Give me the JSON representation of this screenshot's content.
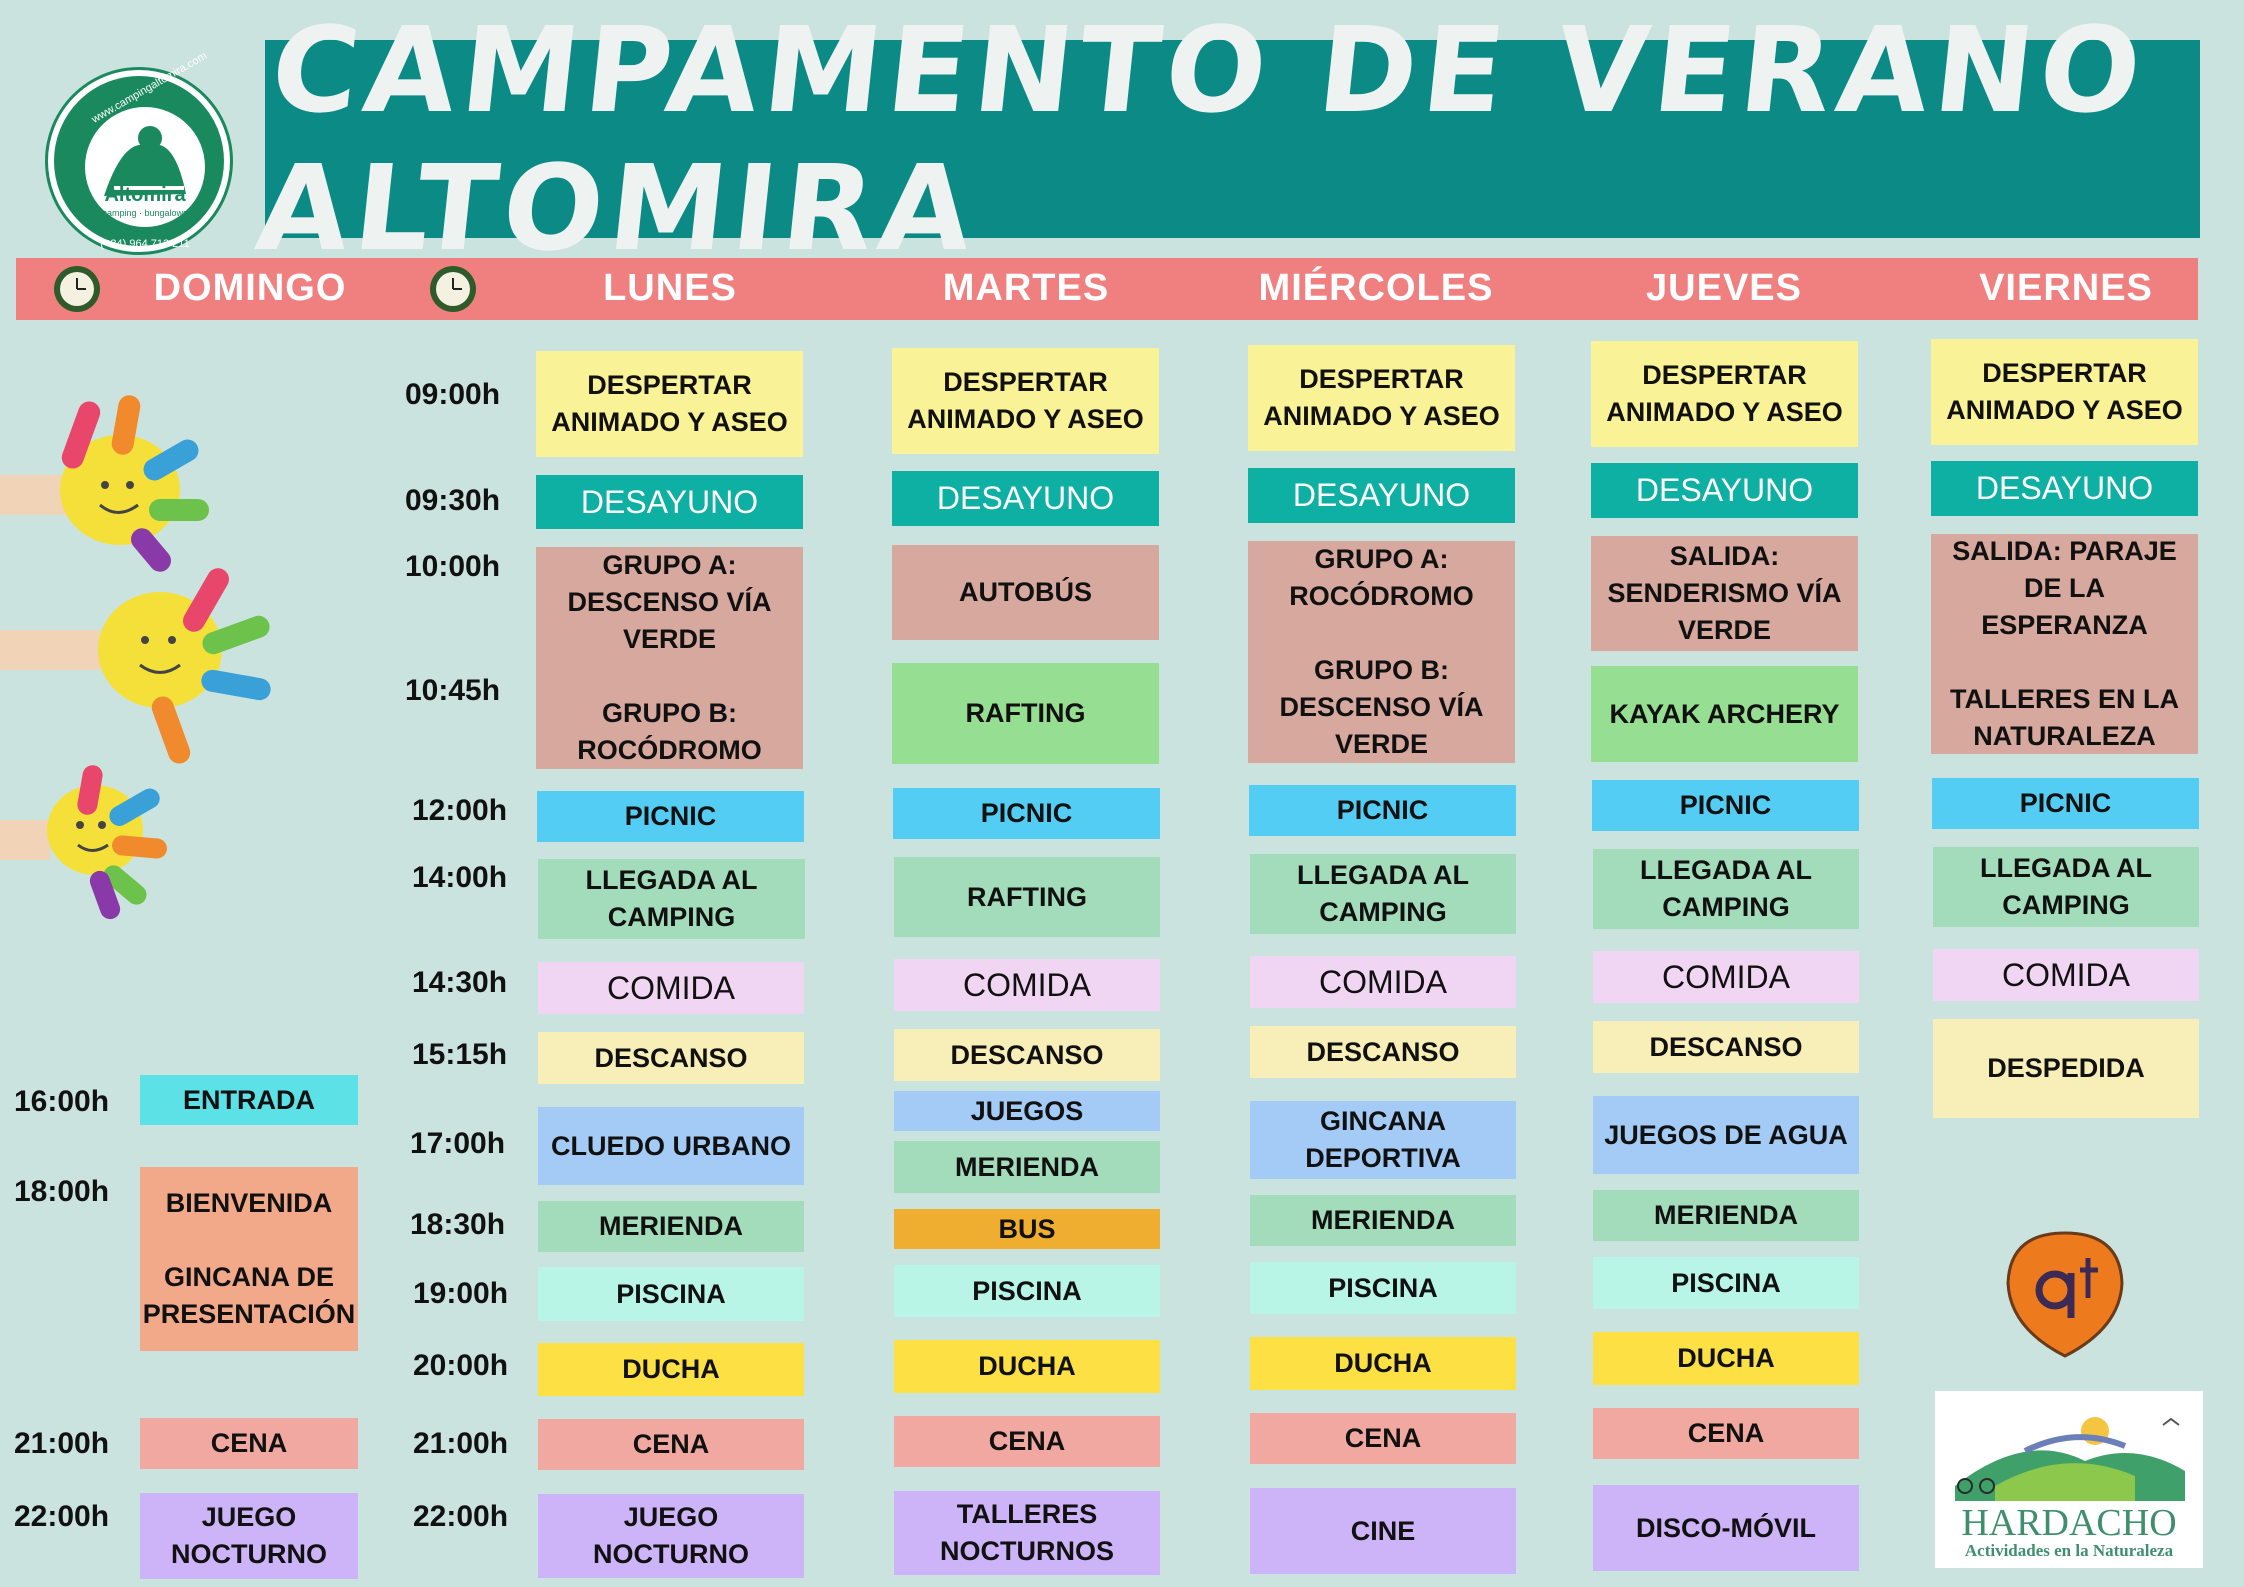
{
  "title": "CAMPAMENTO DE VERANO ALTOMIRA",
  "logo": {
    "url": "www.campingaltomira.com",
    "name": "Altomira",
    "phone": "(+34) 964 713 211",
    "sub": "camping · bungalows"
  },
  "sponsor": {
    "name": "HARDACHO",
    "tagline": "Actividades en la Naturaleza"
  },
  "days": [
    "DOMINGO",
    "LUNES",
    "MARTES",
    "MIÉRCOLES",
    "JUEVES",
    "VIERNES"
  ],
  "sunday_times": [
    "16:00h",
    "18:00h",
    "21:00h",
    "22:00h"
  ],
  "week_times": [
    "09:00h",
    "09:30h",
    "10:00h",
    "10:45h",
    "12:00h",
    "14:00h",
    "14:30h",
    "15:15h",
    "17:00h",
    "18:30h",
    "19:00h",
    "20:00h",
    "21:00h",
    "22:00h"
  ],
  "colors": {
    "header_bar": "#f08080",
    "title_bg": "#0c8a86",
    "background": "#cbe3de"
  },
  "schedule": {
    "domingo": [
      "ENTRADA",
      "BIENVENIDA\n\nGINCANA DE PRESENTACIÓN",
      "CENA",
      "JUEGO NOCTURNO"
    ],
    "lunes": [
      "DESPERTAR ANIMADO Y ASEO",
      "DESAYUNO",
      "GRUPO A: DESCENSO VÍA VERDE\n\nGRUPO B: ROCÓDROMO",
      "PICNIC",
      "LLEGADA AL CAMPING",
      "COMIDA",
      "DESCANSO",
      "CLUEDO URBANO",
      "MERIENDA",
      "PISCINA",
      "DUCHA",
      "CENA",
      "JUEGO NOCTURNO"
    ],
    "martes": [
      "DESPERTAR ANIMADO Y ASEO",
      "DESAYUNO",
      "AUTOBÚS",
      "RAFTING",
      "PICNIC",
      "RAFTING",
      "COMIDA",
      "DESCANSO",
      "JUEGOS",
      "MERIENDA",
      "BUS",
      "PISCINA",
      "DUCHA",
      "CENA",
      "TALLERES NOCTURNOS"
    ],
    "miercoles": [
      "DESPERTAR ANIMADO Y ASEO",
      "DESAYUNO",
      "GRUPO A: ROCÓDROMO\n\nGRUPO B: DESCENSO VÍA VERDE",
      "PICNIC",
      "LLEGADA AL CAMPING",
      "COMIDA",
      "DESCANSO",
      "GINCANA DEPORTIVA",
      "MERIENDA",
      "PISCINA",
      "DUCHA",
      "CENA",
      "CINE"
    ],
    "jueves": [
      "DESPERTAR ANIMADO Y ASEO",
      "DESAYUNO",
      "SALIDA: SENDERISMO VÍA VERDE",
      "KAYAK ARCHERY",
      "PICNIC",
      "LLEGADA AL CAMPING",
      "COMIDA",
      "DESCANSO",
      "JUEGOS DE AGUA",
      "MERIENDA",
      "PISCINA",
      "DUCHA",
      "CENA",
      "DISCO-MÓVIL"
    ],
    "viernes": [
      "DESPERTAR ANIMADO Y ASEO",
      "DESAYUNO",
      "SALIDA: PARAJE DE LA ESPERANZA\n\nTALLERES EN LA NATURALEZA",
      "PICNIC",
      "LLEGADA AL CAMPING",
      "COMIDA",
      "DESPEDIDA"
    ]
  }
}
